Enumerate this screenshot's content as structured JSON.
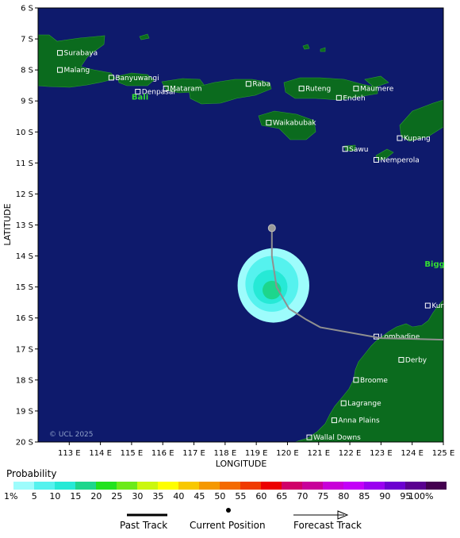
{
  "axes": {
    "xlabel": "LONGITUDE",
    "ylabel": "LATITUDE",
    "lat_ticks": [
      "6 S",
      "7 S",
      "8 S",
      "9 S",
      "10 S",
      "11 S",
      "12 S",
      "13 S",
      "14 S",
      "15 S",
      "16 S",
      "17 S",
      "18 S",
      "19 S",
      "20 S"
    ],
    "lon_ticks": [
      "113 E",
      "114 E",
      "115 E",
      "116 E",
      "117 E",
      "118 E",
      "119 E",
      "120 E",
      "121 E",
      "122 E",
      "123 E",
      "124 E",
      "125 E"
    ],
    "lat_range": [
      6,
      20
    ],
    "lon_range": [
      112,
      125
    ]
  },
  "map": {
    "colors": {
      "ocean": "#0e1a6c",
      "land": "#0b6b1e",
      "track": "#909090",
      "current": "#9a9a9a"
    },
    "copyright": "© UCL 2025",
    "regions": [
      {
        "name": "Bali",
        "lon": 115.0,
        "lat": 8.95
      },
      {
        "name": "Bigg",
        "lon": 124.4,
        "lat": 14.35
      }
    ],
    "towns": [
      {
        "name": "Surabaya",
        "lon": 112.7,
        "lat": 7.45
      },
      {
        "name": "Malang",
        "lon": 112.7,
        "lat": 8.0
      },
      {
        "name": "Banyuwangi",
        "lon": 114.35,
        "lat": 8.25
      },
      {
        "name": "Denpasar",
        "lon": 115.2,
        "lat": 8.7
      },
      {
        "name": "Mataram",
        "lon": 116.1,
        "lat": 8.6
      },
      {
        "name": "Raba",
        "lon": 118.75,
        "lat": 8.45
      },
      {
        "name": "Ruteng",
        "lon": 120.45,
        "lat": 8.6
      },
      {
        "name": "Maumere",
        "lon": 122.2,
        "lat": 8.6
      },
      {
        "name": "Endeh",
        "lon": 121.65,
        "lat": 8.9
      },
      {
        "name": "Waikabubak",
        "lon": 119.4,
        "lat": 9.7
      },
      {
        "name": "Sawu",
        "lon": 121.85,
        "lat": 10.55
      },
      {
        "name": "Kupang",
        "lon": 123.6,
        "lat": 10.2
      },
      {
        "name": "Nemperola",
        "lon": 122.85,
        "lat": 10.9
      },
      {
        "name": "Kuri Bay",
        "lon": 124.5,
        "lat": 15.6
      },
      {
        "name": "Lombadine",
        "lon": 122.85,
        "lat": 16.6
      },
      {
        "name": "Derby",
        "lon": 123.65,
        "lat": 17.35
      },
      {
        "name": "Broome",
        "lon": 122.2,
        "lat": 18.0
      },
      {
        "name": "Lagrange",
        "lon": 121.8,
        "lat": 18.75
      },
      {
        "name": "Anna Plains",
        "lon": 121.5,
        "lat": 19.3
      },
      {
        "name": "Wallal Downs",
        "lon": 120.7,
        "lat": 19.85
      }
    ],
    "track": [
      {
        "lon": 119.5,
        "lat": 13.15
      },
      {
        "lon": 119.5,
        "lat": 14.0
      },
      {
        "lon": 119.65,
        "lat": 15.0
      },
      {
        "lon": 120.05,
        "lat": 15.7
      },
      {
        "lon": 120.6,
        "lat": 16.05
      },
      {
        "lon": 121.05,
        "lat": 16.3
      },
      {
        "lon": 123.0,
        "lat": 16.65
      },
      {
        "lon": 125.0,
        "lat": 16.7
      }
    ],
    "current_position": {
      "lon": 119.5,
      "lat": 13.1
    },
    "probability_field": [
      {
        "cx": 119.55,
        "cy": 14.95,
        "rx": 1.15,
        "ry": 1.2,
        "level": "1"
      },
      {
        "cx": 119.5,
        "cy": 14.9,
        "rx": 0.85,
        "ry": 0.9,
        "level": "5"
      },
      {
        "cx": 119.45,
        "cy": 15.0,
        "rx": 0.55,
        "ry": 0.55,
        "level": "10"
      },
      {
        "cx": 119.5,
        "cy": 15.1,
        "rx": 0.3,
        "ry": 0.3,
        "level": "15"
      }
    ]
  },
  "legend": {
    "title": "Probability",
    "labels": [
      "1%",
      "5",
      "10",
      "15",
      "20",
      "25",
      "30",
      "35",
      "40",
      "45",
      "50",
      "55",
      "60",
      "65",
      "70",
      "75",
      "80",
      "85",
      "90",
      "95",
      "100%"
    ],
    "colors": [
      "#9dfcfc",
      "#55f2ee",
      "#26e9d6",
      "#1dd68c",
      "#22e21e",
      "#6cea19",
      "#cbf70e",
      "#fefe00",
      "#f8c800",
      "#f59800",
      "#f46a00",
      "#f03a00",
      "#ec0000",
      "#d00068",
      "#c8009a",
      "#c800d8",
      "#c300f8",
      "#9a00f0",
      "#6c00d0",
      "#5a0090",
      "#440050"
    ],
    "key": {
      "past": "Past Track",
      "current": "Current Position",
      "forecast": "Forecast Track"
    }
  }
}
